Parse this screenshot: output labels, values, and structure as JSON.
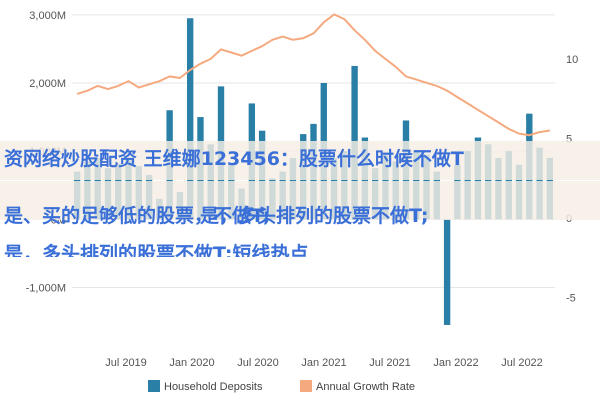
{
  "chart_data": {
    "type": "bar",
    "title": "",
    "xlabel": "",
    "ylabel": "",
    "left_axis": {
      "ticks": [
        3000,
        2000,
        1000,
        0,
        -1000
      ],
      "labels": [
        "3,000M",
        "2,000M",
        "1,000M",
        "0M",
        "-1,000M"
      ],
      "ylim": [
        -1800,
        3100
      ]
    },
    "right_axis": {
      "ticks": [
        10,
        5,
        0,
        -5
      ],
      "labels": [
        "10",
        "5",
        "0",
        "-5"
      ],
      "ylim": [
        -7.8,
        13.2
      ]
    },
    "x_axis": {
      "labels": [
        "Jul 2019",
        "Jan 2020",
        "Jul 2020",
        "Jan 2021",
        "Jul 2021",
        "Jan 2022",
        "Jul 2022"
      ]
    },
    "grid": true,
    "legend": "bottom",
    "series": [
      {
        "name": "Household Deposits",
        "kind": "bar",
        "color": "#2a7fa6",
        "values": [
          700,
          850,
          900,
          750,
          820,
          900,
          780,
          650,
          300,
          1600,
          400,
          2950,
          1500,
          1100,
          1950,
          800,
          450,
          1700,
          1300,
          600,
          700,
          900,
          1250,
          1400,
          2000,
          900,
          1000,
          2250,
          1200,
          750,
          950,
          850,
          1450,
          1000,
          950,
          700,
          -1550,
          800,
          1000,
          1200,
          1100,
          900,
          1000,
          800,
          1550,
          1050,
          900
        ]
      },
      {
        "name": "Annual Growth Rate",
        "kind": "line",
        "color": "#f5a97f",
        "values": [
          7.8,
          8.0,
          8.3,
          8.1,
          8.3,
          8.6,
          8.2,
          8.4,
          8.6,
          8.9,
          8.8,
          9.3,
          9.7,
          10.0,
          10.6,
          10.4,
          10.2,
          10.5,
          10.8,
          11.2,
          11.4,
          11.2,
          11.3,
          11.6,
          12.3,
          12.8,
          12.5,
          11.8,
          11.2,
          10.5,
          10.0,
          9.5,
          8.9,
          8.7,
          8.5,
          8.3,
          8.0,
          7.6,
          7.2,
          6.8,
          6.4,
          6.0,
          5.6,
          5.3,
          5.2,
          5.4,
          5.5
        ]
      }
    ]
  },
  "legend": {
    "deposits_label": "Household Deposits",
    "growth_label": "Annual Growth Rate"
  },
  "overlay": {
    "line1": "资网络炒股配资 王维娜123456：股票什么时候不做T",
    "line2": "是、买的足够低的股票，不做T;",
    "line3": "是，多头排列的股票不做T;",
    "line4": "是，多头排列的股票不做T;短线热点"
  }
}
